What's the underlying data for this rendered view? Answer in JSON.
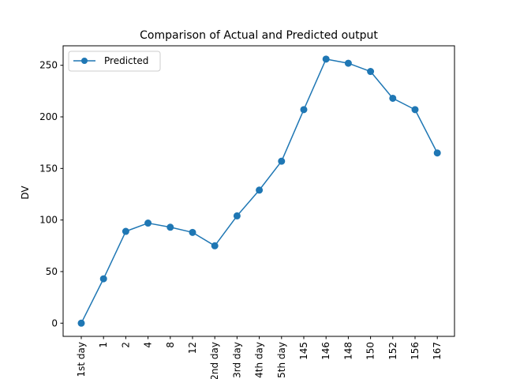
{
  "chart_data": {
    "type": "line",
    "title": "Comparison of Actual and Predicted output",
    "xlabel": "",
    "ylabel": "DV",
    "categories": [
      "1st day",
      "1",
      "2",
      "4",
      "8",
      "12",
      "2nd day",
      "3rd day",
      "4th day",
      "5th day",
      "145",
      "146",
      "148",
      "150",
      "152",
      "156",
      "167"
    ],
    "series": [
      {
        "name": "Predicted",
        "color": "#1f77b4",
        "marker": "circle",
        "values": [
          0,
          43,
          89,
          97,
          93,
          88,
          75,
          104,
          129,
          157,
          207,
          256,
          252,
          244,
          218,
          207,
          165
        ]
      }
    ],
    "ylim": [
      -12.8,
      268.9
    ],
    "yticks": [
      0,
      50,
      100,
      150,
      200,
      250
    ],
    "grid": false,
    "legend": "upper left"
  }
}
